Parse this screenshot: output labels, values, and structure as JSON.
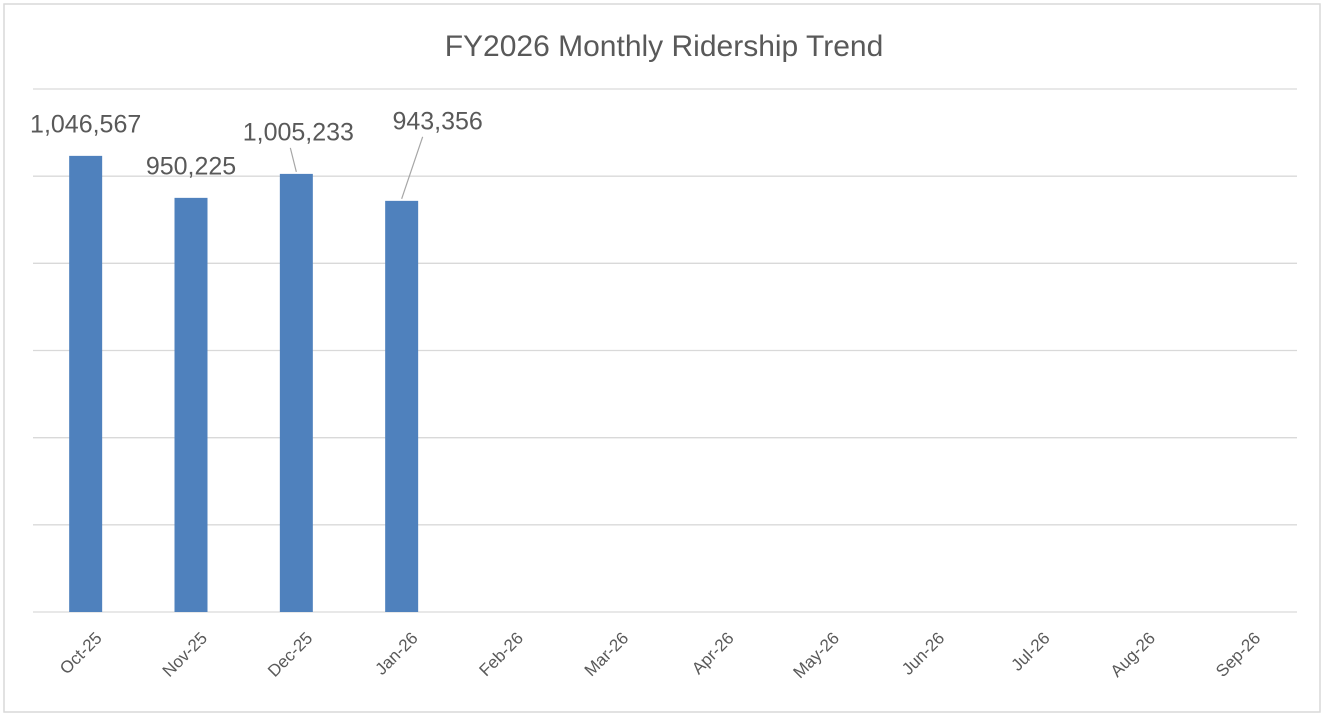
{
  "chart_data": {
    "type": "bar",
    "title": "FY2026 Monthly Ridership Trend",
    "categories": [
      "Oct-25",
      "Nov-25",
      "Dec-25",
      "Jan-26",
      "Feb-26",
      "Mar-26",
      "Apr-26",
      "May-26",
      "Jun-26",
      "Jul-26",
      "Aug-26",
      "Sep-26"
    ],
    "values": [
      1046567,
      950225,
      1005233,
      943356,
      null,
      null,
      null,
      null,
      null,
      null,
      null,
      null
    ],
    "value_labels": [
      "1,046,567",
      "950,225",
      "1,005,233",
      "943,356",
      null,
      null,
      null,
      null,
      null,
      null,
      null,
      null
    ],
    "color": "#4f81bd",
    "ylim": [
      0,
      1200000
    ],
    "yticks": [
      0,
      200000,
      400000,
      600000,
      800000,
      1000000,
      1200000
    ],
    "grid": true
  }
}
